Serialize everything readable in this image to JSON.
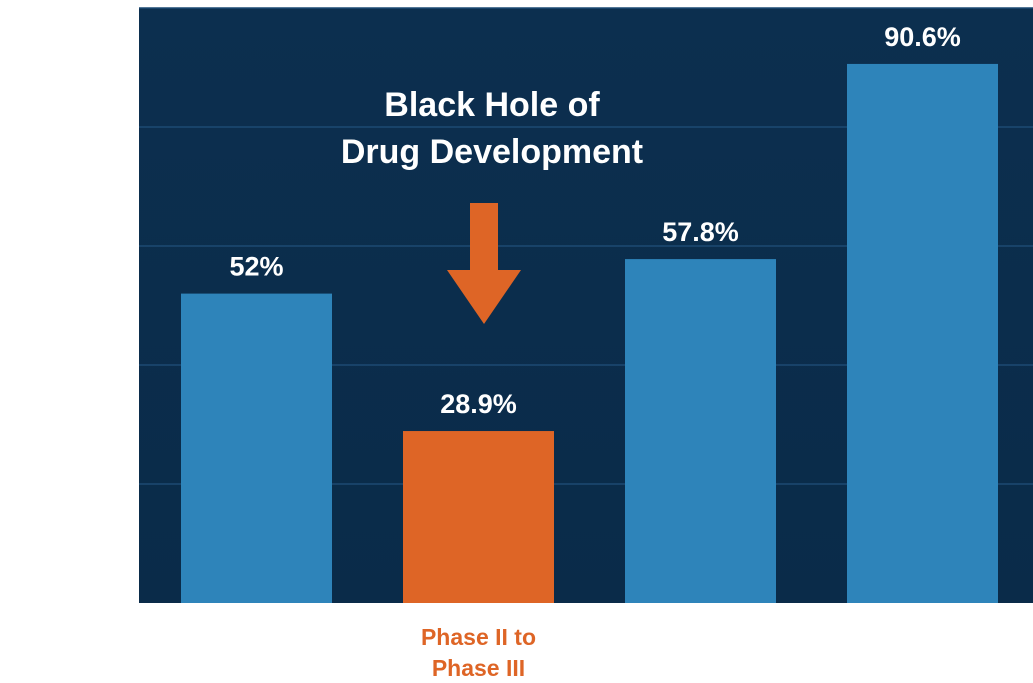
{
  "chart_data": {
    "type": "bar",
    "categories": [
      "",
      "Phase II to\nPhase III",
      "",
      ""
    ],
    "values": [
      52,
      28.9,
      57.8,
      90.6
    ],
    "value_labels": [
      "52%",
      "28.9%",
      "57.8%",
      "90.6%"
    ],
    "highlight_index": 1,
    "title": "",
    "xlabel": "",
    "ylabel": "",
    "ylim": [
      0,
      100
    ],
    "grid": true,
    "grid_lines": [
      20,
      40,
      60,
      80,
      100
    ],
    "annotation": {
      "lines": [
        "Black Hole of",
        "Drug Development"
      ],
      "points_to_index": 1
    },
    "colors": {
      "background": "#0b2f50",
      "bar": "#2e84ba",
      "highlight": "#de6526",
      "grid": "#1c4a73",
      "label_text": "#ffffff",
      "category_text": "#de6526"
    }
  }
}
